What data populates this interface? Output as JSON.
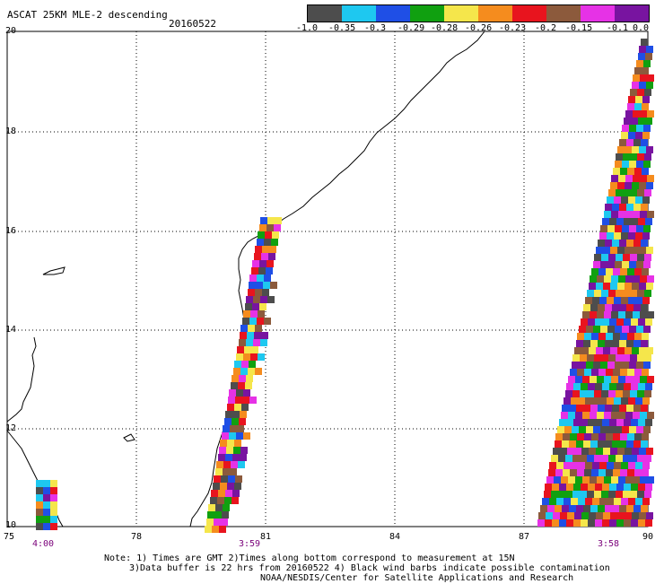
{
  "header": {
    "title": "ASCAT 25KM MLE-2 descending",
    "date": "20160522"
  },
  "colorbar": {
    "colors": [
      "#4d4d4d",
      "#1ec8f0",
      "#1f4fe6",
      "#10a010",
      "#f5e64b",
      "#f58c1e",
      "#e8141e",
      "#8c5a3c",
      "#e632e6",
      "#7814a0"
    ],
    "labels": [
      "-1.0",
      "-0.35",
      "-0.3",
      "-0.29",
      "-0.28",
      "-0.26",
      "-0.23",
      "-0.2",
      "-0.15",
      "-0.1",
      "0.0"
    ]
  },
  "map": {
    "lat_labels": [
      "20",
      "18",
      "16",
      "14",
      "12",
      "10"
    ],
    "lon_labels": [
      "75",
      "78",
      "81",
      "84",
      "87",
      "90"
    ],
    "time_labels": [
      "4:00",
      "3:59",
      "3:58"
    ]
  },
  "footer": {
    "note_line1": "Note: 1) Times are GMT 2)Times along bottom correspond to measurement at 15N",
    "note_line2": "3)Data buffer is 22 hrs from 20160522 4) Black wind barbs indicate possible contamination",
    "note_line3": "NOAA/NESDIS/Center for Satellite Applications and Research"
  }
}
